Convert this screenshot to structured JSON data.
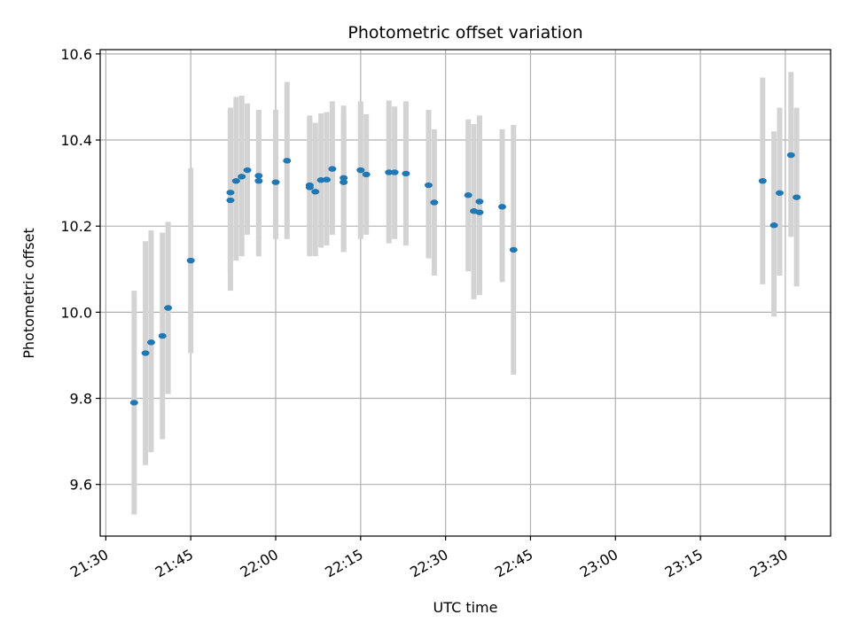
{
  "chart_data": {
    "type": "scatter",
    "title": "Photometric offset variation",
    "xlabel": "UTC time",
    "ylabel": "Photometric offset",
    "x_unit": "time of day (HH:MM)",
    "x_ticks": [
      "21:30",
      "21:45",
      "22:00",
      "22:15",
      "22:30",
      "22:45",
      "23:00",
      "23:15",
      "23:30"
    ],
    "y_ticks": [
      "9.6",
      "9.8",
      "10.0",
      "10.2",
      "10.4",
      "10.6"
    ],
    "xlim": [
      "21:29",
      "23:38"
    ],
    "ylim": [
      9.48,
      10.61
    ],
    "grid": true,
    "colors": {
      "point": "#1f77b4",
      "error_bar": "#d3d3d3",
      "grid": "#b0b0b0"
    },
    "series": [
      {
        "x": [
          "21:35",
          "21:37",
          "21:38",
          "21:40",
          "21:41",
          "21:45",
          "21:52",
          "21:52",
          "21:53",
          "21:54",
          "21:55",
          "21:57",
          "21:57",
          "22:00",
          "22:02",
          "22:06",
          "22:06",
          "22:07",
          "22:08",
          "22:09",
          "22:10",
          "22:12",
          "22:12",
          "22:15",
          "22:15",
          "22:16",
          "22:20",
          "22:21",
          "22:23",
          "22:27",
          "22:28",
          "22:34",
          "22:35",
          "22:36",
          "22:36",
          "22:40",
          "22:42",
          "23:26",
          "23:28",
          "23:29",
          "23:31",
          "23:32"
        ],
        "y": [
          9.79,
          9.905,
          9.93,
          9.945,
          10.01,
          10.12,
          10.26,
          10.278,
          10.305,
          10.315,
          10.33,
          10.317,
          10.305,
          10.302,
          10.352,
          10.295,
          10.29,
          10.28,
          10.307,
          10.308,
          10.333,
          10.312,
          10.302,
          10.33,
          10.33,
          10.32,
          10.325,
          10.325,
          10.322,
          10.295,
          10.255,
          10.272,
          10.235,
          10.232,
          10.257,
          10.245,
          10.145,
          10.305,
          10.202,
          10.277,
          10.365,
          10.267
        ],
        "y_err_low": [
          9.53,
          9.645,
          9.675,
          9.705,
          9.81,
          9.905,
          10.05,
          10.09,
          10.12,
          10.13,
          10.18,
          10.17,
          10.13,
          10.17,
          10.17,
          10.14,
          10.13,
          10.13,
          10.15,
          10.155,
          10.18,
          10.14,
          10.14,
          10.17,
          10.175,
          10.18,
          10.16,
          10.17,
          10.155,
          10.125,
          10.085,
          10.095,
          10.03,
          10.04,
          10.06,
          10.07,
          9.855,
          10.065,
          9.99,
          10.085,
          10.175,
          10.06
        ],
        "y_err_high": [
          10.05,
          10.165,
          10.19,
          10.185,
          10.21,
          10.335,
          10.475,
          10.47,
          10.5,
          10.503,
          10.485,
          10.47,
          10.47,
          10.47,
          10.535,
          10.455,
          10.457,
          10.44,
          10.462,
          10.465,
          10.49,
          10.48,
          10.46,
          10.49,
          10.485,
          10.46,
          10.492,
          10.478,
          10.49,
          10.47,
          10.425,
          10.448,
          10.437,
          10.425,
          10.457,
          10.425,
          10.435,
          10.545,
          10.42,
          10.475,
          10.558,
          10.475
        ]
      }
    ]
  }
}
